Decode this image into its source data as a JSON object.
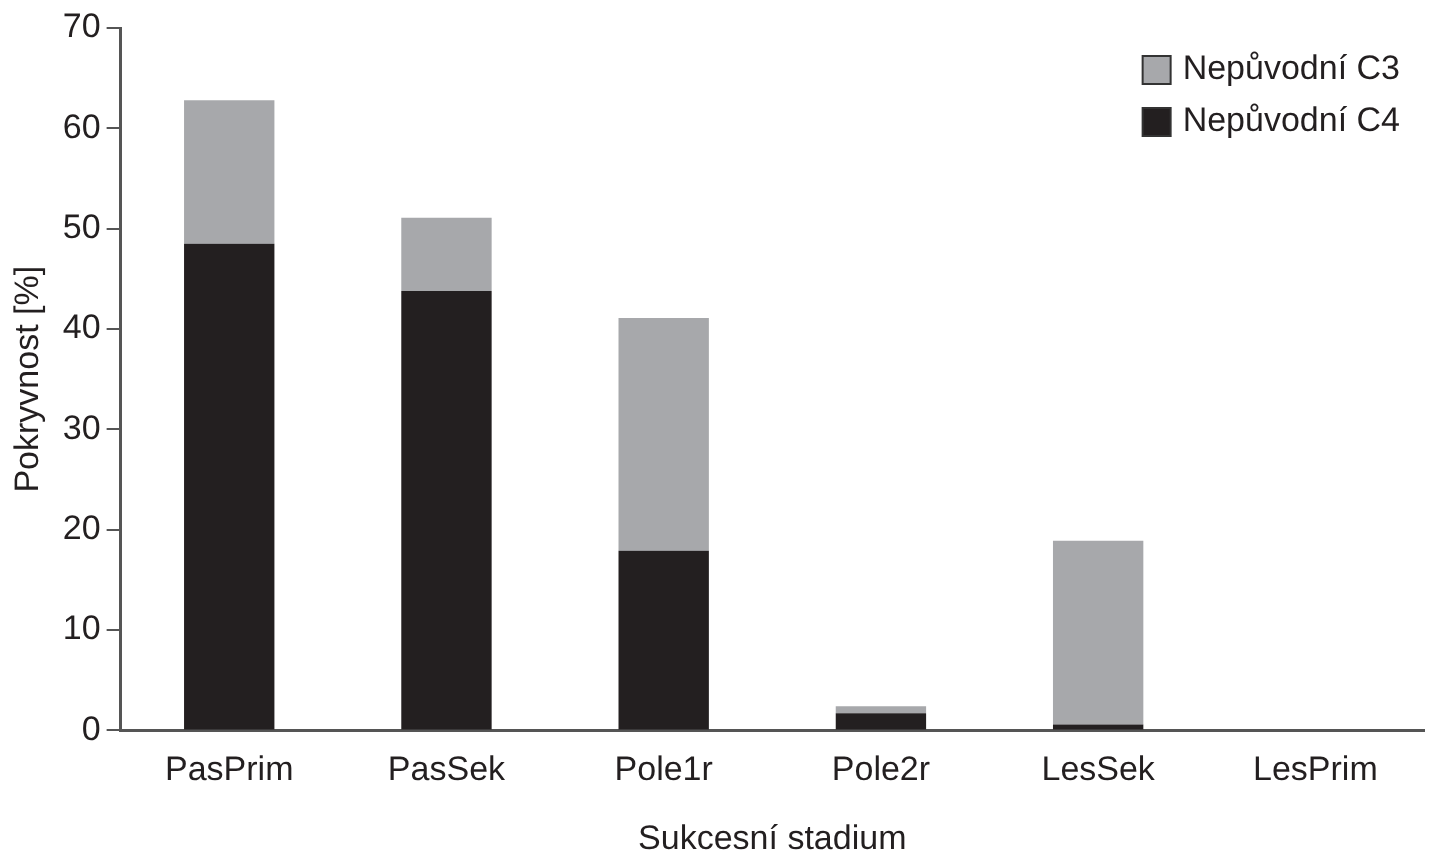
{
  "chart_data": {
    "type": "bar",
    "stacked": true,
    "xlabel": "Sukcesní stadium",
    "ylabel": "Pokryvnost [%]",
    "categories": [
      "PasPrim",
      "PasSek",
      "Pole1r",
      "Pole2r",
      "LesSek",
      "LesPrim"
    ],
    "series": [
      {
        "name": "Nepůvodní C4",
        "color": "#231f20",
        "values": [
          48.5,
          43.8,
          17.9,
          1.7,
          0.6,
          0
        ]
      },
      {
        "name": "Nepůvodní C3",
        "color": "#a7a8ab",
        "values": [
          14.3,
          7.3,
          23.2,
          0.7,
          18.3,
          0
        ]
      }
    ],
    "ylim": [
      0,
      70
    ],
    "yticks": [
      0,
      10,
      20,
      30,
      40,
      50,
      60,
      70
    ],
    "grid": false,
    "legend": "top right"
  }
}
